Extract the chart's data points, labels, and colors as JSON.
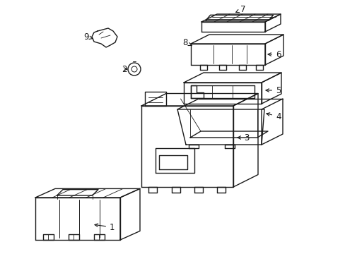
{
  "background_color": "#ffffff",
  "line_color": "#1a1a1a",
  "line_width": 1.0,
  "parts": [
    1,
    2,
    3,
    4,
    5,
    6,
    7,
    8,
    9
  ]
}
